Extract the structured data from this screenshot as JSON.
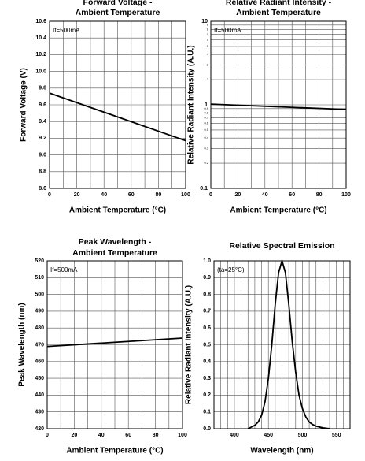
{
  "chart_data": [
    {
      "type": "line",
      "title": [
        "Forward Voltage -",
        "Ambient Temperature"
      ],
      "annotation": "If=500mA",
      "xlabel": "Ambient Temperature (°C)",
      "ylabel": "Forward Voltage (V)",
      "x": [
        0,
        100
      ],
      "values": [
        9.74,
        9.17
      ],
      "color": "#000000",
      "xlim": [
        0,
        100
      ],
      "xticks": [
        0,
        20,
        40,
        60,
        80,
        100
      ],
      "minor_xticks": [
        10,
        30,
        50,
        70,
        90
      ],
      "ylim": [
        8.6,
        10.6
      ],
      "yticks": [
        8.6,
        8.8,
        {
          "value": 9,
          "label": "9.0"
        },
        9.2,
        9.4,
        9.6,
        9.8,
        {
          "value": 10,
          "label": "10.0"
        },
        10.2,
        10.4,
        10.6
      ],
      "log_y": false,
      "grid": true
    },
    {
      "type": "line",
      "title": [
        "Relative Radiant Intensity -",
        "Ambient Temperature"
      ],
      "annotation": "If=500mA",
      "xlabel": "Ambient Temperature (°C)",
      "ylabel": "Relative Radiant Intensity (A.U.)",
      "x": [
        0,
        100
      ],
      "values": [
        1.02,
        0.88
      ],
      "color": "#000000",
      "xlim": [
        0,
        100
      ],
      "xticks": [
        0,
        20,
        40,
        60,
        80,
        100
      ],
      "minor_xticks": [
        10,
        30,
        50,
        70,
        90
      ],
      "ylim": [
        0.1,
        10
      ],
      "yticks": [
        0.1,
        1,
        10
      ],
      "minor_yticks": [
        0.2,
        0.3,
        0.4,
        0.5,
        0.6,
        0.7,
        0.8,
        0.9,
        2,
        3,
        4,
        5,
        6,
        7,
        8,
        9
      ],
      "log_y": true,
      "grid": true
    },
    {
      "type": "line",
      "title": [
        "Peak Wavelength -",
        "Ambient Temperature"
      ],
      "annotation": "If=500mA",
      "xlabel": "Ambient Temperature (°C)",
      "ylabel": "Peak Wavelength (nm)",
      "x": [
        0,
        100
      ],
      "values": [
        469,
        474
      ],
      "color": "#000000",
      "xlim": [
        0,
        100
      ],
      "xticks": [
        0,
        20,
        40,
        60,
        80,
        100
      ],
      "minor_xticks": [
        10,
        30,
        50,
        70,
        90
      ],
      "ylim": [
        420,
        520
      ],
      "yticks": [
        420,
        430,
        440,
        450,
        460,
        470,
        480,
        490,
        500,
        510,
        520
      ],
      "log_y": false,
      "grid": true
    },
    {
      "type": "line",
      "title": [
        "Relative Spectral Emission"
      ],
      "annotation": "(ta=25°C)",
      "xlabel": "Wavelength (nm)",
      "ylabel": "Relative Radiant Intensity (A.U.)",
      "x": [
        420,
        425,
        430,
        435,
        440,
        445,
        450,
        455,
        460,
        465,
        470,
        475,
        480,
        485,
        490,
        495,
        500,
        505,
        510,
        515,
        520,
        530,
        540
      ],
      "values": [
        0,
        0.01,
        0.02,
        0.04,
        0.08,
        0.16,
        0.3,
        0.5,
        0.74,
        0.93,
        1.0,
        0.93,
        0.74,
        0.52,
        0.34,
        0.2,
        0.12,
        0.07,
        0.04,
        0.025,
        0.015,
        0.005,
        0
      ],
      "color": "#000000",
      "xlim": [
        370,
        570
      ],
      "xticks": [
        400,
        450,
        500,
        550
      ],
      "minor_xticks": [
        380,
        390,
        410,
        420,
        430,
        440,
        460,
        470,
        480,
        490,
        510,
        520,
        530,
        540,
        560
      ],
      "ylim": [
        0,
        1
      ],
      "yticks": [
        {
          "value": 0,
          "label": "0.0"
        },
        0.1,
        0.2,
        0.3,
        0.4,
        0.5,
        0.6,
        0.7,
        0.8,
        0.9,
        {
          "value": 1,
          "label": "1.0"
        }
      ],
      "log_y": false,
      "grid": true
    }
  ]
}
